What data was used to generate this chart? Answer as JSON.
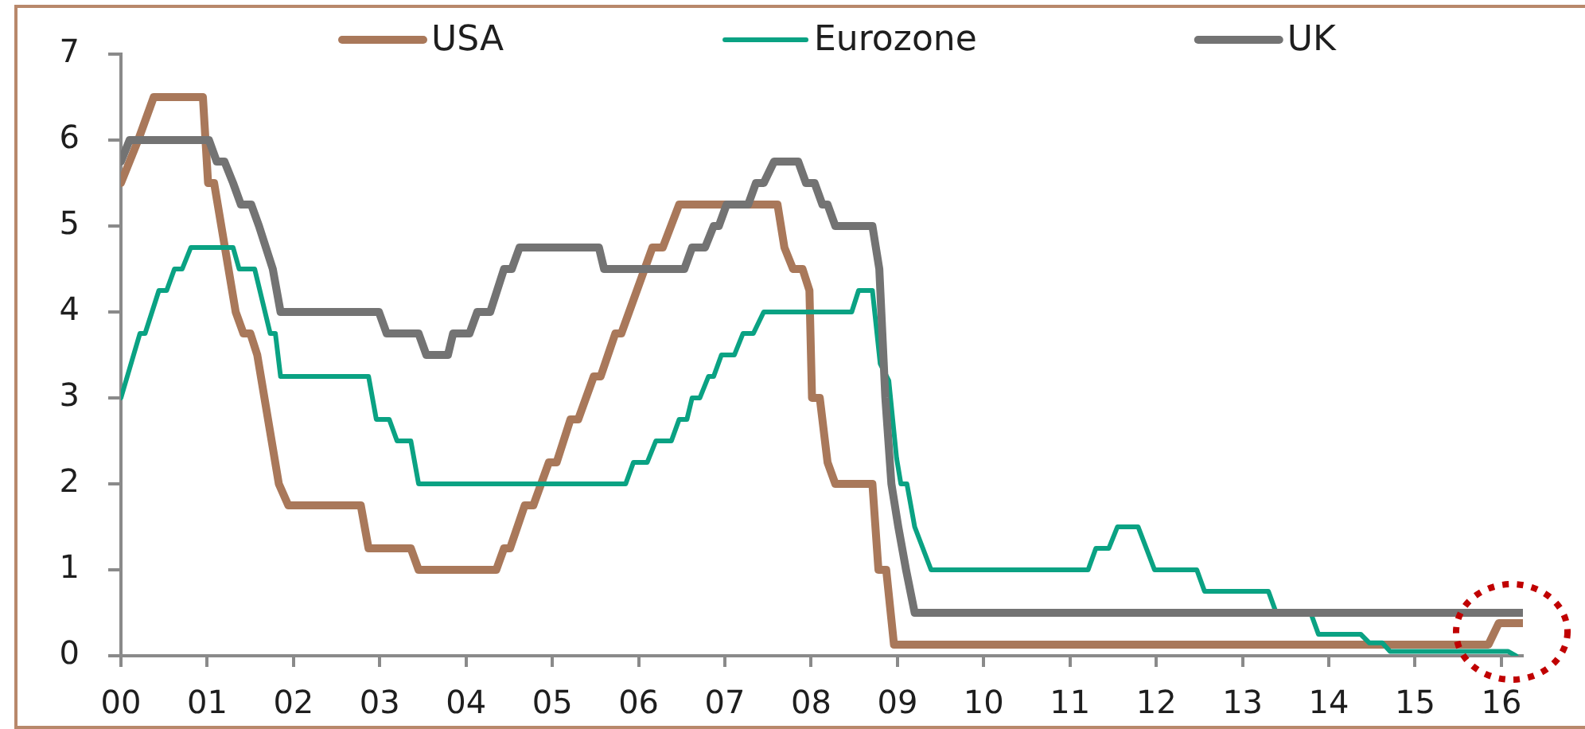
{
  "chart_data": {
    "type": "line",
    "xlim": [
      2000,
      2016.25
    ],
    "xticks": [
      {
        "value": 2000,
        "label": "00"
      },
      {
        "value": 2001,
        "label": "01"
      },
      {
        "value": 2002,
        "label": "02"
      },
      {
        "value": 2003,
        "label": "03"
      },
      {
        "value": 2004,
        "label": "04"
      },
      {
        "value": 2005,
        "label": "05"
      },
      {
        "value": 2006,
        "label": "06"
      },
      {
        "value": 2007,
        "label": "07"
      },
      {
        "value": 2008,
        "label": "08"
      },
      {
        "value": 2009,
        "label": "09"
      },
      {
        "value": 2010,
        "label": "10"
      },
      {
        "value": 2011,
        "label": "11"
      },
      {
        "value": 2012,
        "label": "12"
      },
      {
        "value": 2013,
        "label": "13"
      },
      {
        "value": 2014,
        "label": "14"
      },
      {
        "value": 2015,
        "label": "15"
      },
      {
        "value": 2016,
        "label": "16"
      }
    ],
    "ylim": [
      0,
      7
    ],
    "yticks": [
      0,
      1,
      2,
      3,
      4,
      5,
      6,
      7
    ],
    "legend": "top",
    "series": [
      {
        "name": "USA",
        "color": "#a9785a",
        "x": [
          2000,
          2000.1,
          2000.2,
          2000.38,
          2000.95,
          2001.01,
          2001.08,
          2001.33,
          2001.42,
          2001.5,
          2001.58,
          2001.83,
          2001.94,
          2002.78,
          2002.87,
          2003.36,
          2003.45,
          2004.35,
          2004.44,
          2004.51,
          2004.68,
          2004.78,
          2004.96,
          2005.05,
          2005.21,
          2005.3,
          2005.48,
          2005.56,
          2005.73,
          2005.8,
          2006.16,
          2006.28,
          2006.47,
          2007.61,
          2007.69,
          2007.79,
          2007.9,
          2007.98,
          2008.01,
          2008.1,
          2008.19,
          2008.28,
          2008.71,
          2008.78,
          2008.87,
          2008.96,
          2015.85,
          2015.97,
          2016.25
        ],
        "values": [
          5.5,
          5.75,
          6.0,
          6.5,
          6.5,
          5.5,
          5.5,
          4.0,
          3.75,
          3.75,
          3.5,
          2.0,
          1.75,
          1.75,
          1.25,
          1.25,
          1.0,
          1.0,
          1.25,
          1.25,
          1.75,
          1.75,
          2.25,
          2.25,
          2.75,
          2.75,
          3.25,
          3.25,
          3.75,
          3.75,
          4.75,
          4.75,
          5.25,
          5.25,
          4.75,
          4.5,
          4.5,
          4.25,
          3.0,
          3.0,
          2.25,
          2.0,
          2.0,
          1.0,
          1.0,
          0.13,
          0.13,
          0.38,
          0.38
        ]
      },
      {
        "name": "Eurozone",
        "color": "#0aa283",
        "x": [
          2000,
          2000.22,
          2000.28,
          2000.44,
          2000.53,
          2000.62,
          2000.71,
          2000.81,
          2001.3,
          2001.37,
          2001.55,
          2001.61,
          2001.73,
          2001.79,
          2001.85,
          2002.87,
          2002.96,
          2003.11,
          2003.2,
          2003.36,
          2003.45,
          2005.85,
          2005.94,
          2006.1,
          2006.2,
          2006.38,
          2006.47,
          2006.56,
          2006.62,
          2006.71,
          2006.81,
          2006.87,
          2006.96,
          2007.11,
          2007.21,
          2007.33,
          2007.45,
          2008.47,
          2008.55,
          2008.71,
          2008.8,
          2008.9,
          2008.99,
          2009.04,
          2009.11,
          2009.2,
          2009.39,
          2011.21,
          2011.3,
          2011.45,
          2011.55,
          2011.79,
          2011.98,
          2012.47,
          2012.56,
          2013.3,
          2013.39,
          2013.79,
          2013.88,
          2014.37,
          2014.47,
          2014.62,
          2014.71,
          2016.08,
          2016.17
        ],
        "values": [
          3.0,
          3.75,
          3.75,
          4.25,
          4.25,
          4.5,
          4.5,
          4.75,
          4.75,
          4.5,
          4.5,
          4.25,
          3.75,
          3.75,
          3.25,
          3.25,
          2.75,
          2.75,
          2.5,
          2.5,
          2.0,
          2.0,
          2.25,
          2.25,
          2.5,
          2.5,
          2.75,
          2.75,
          3.0,
          3.0,
          3.25,
          3.25,
          3.5,
          3.5,
          3.75,
          3.75,
          4.0,
          4.0,
          4.25,
          4.25,
          3.4,
          3.2,
          2.3,
          2.0,
          2.0,
          1.5,
          1.0,
          1.0,
          1.25,
          1.25,
          1.5,
          1.5,
          1.0,
          1.0,
          0.75,
          0.75,
          0.5,
          0.5,
          0.25,
          0.25,
          0.15,
          0.15,
          0.05,
          0.05,
          0.0
        ]
      },
      {
        "name": "UK",
        "color": "#737373",
        "x": [
          2000,
          2000.1,
          2001.02,
          2001.11,
          2001.2,
          2001.3,
          2001.39,
          2001.51,
          2001.6,
          2001.68,
          2001.76,
          2001.85,
          2002.99,
          2003.08,
          2003.45,
          2003.54,
          2003.79,
          2003.85,
          2004.04,
          2004.13,
          2004.28,
          2004.44,
          2004.53,
          2004.62,
          2005.54,
          2005.6,
          2006.53,
          2006.62,
          2006.77,
          2006.87,
          2006.93,
          2007.02,
          2007.27,
          2007.36,
          2007.45,
          2007.57,
          2007.85,
          2007.94,
          2008.04,
          2008.13,
          2008.19,
          2008.28,
          2008.71,
          2008.79,
          2008.86,
          2008.93,
          2009.01,
          2009.1,
          2009.2,
          2016.25
        ],
        "values": [
          5.75,
          6.0,
          6.0,
          5.75,
          5.75,
          5.5,
          5.25,
          5.25,
          5.0,
          4.75,
          4.5,
          4.0,
          4.0,
          3.75,
          3.75,
          3.5,
          3.5,
          3.75,
          3.75,
          4.0,
          4.0,
          4.5,
          4.5,
          4.75,
          4.75,
          4.5,
          4.5,
          4.75,
          4.75,
          5.0,
          5.0,
          5.25,
          5.25,
          5.5,
          5.5,
          5.75,
          5.75,
          5.5,
          5.5,
          5.25,
          5.25,
          5.0,
          5.0,
          4.5,
          3.0,
          2.0,
          1.5,
          1.0,
          0.5,
          0.5
        ]
      }
    ]
  }
}
